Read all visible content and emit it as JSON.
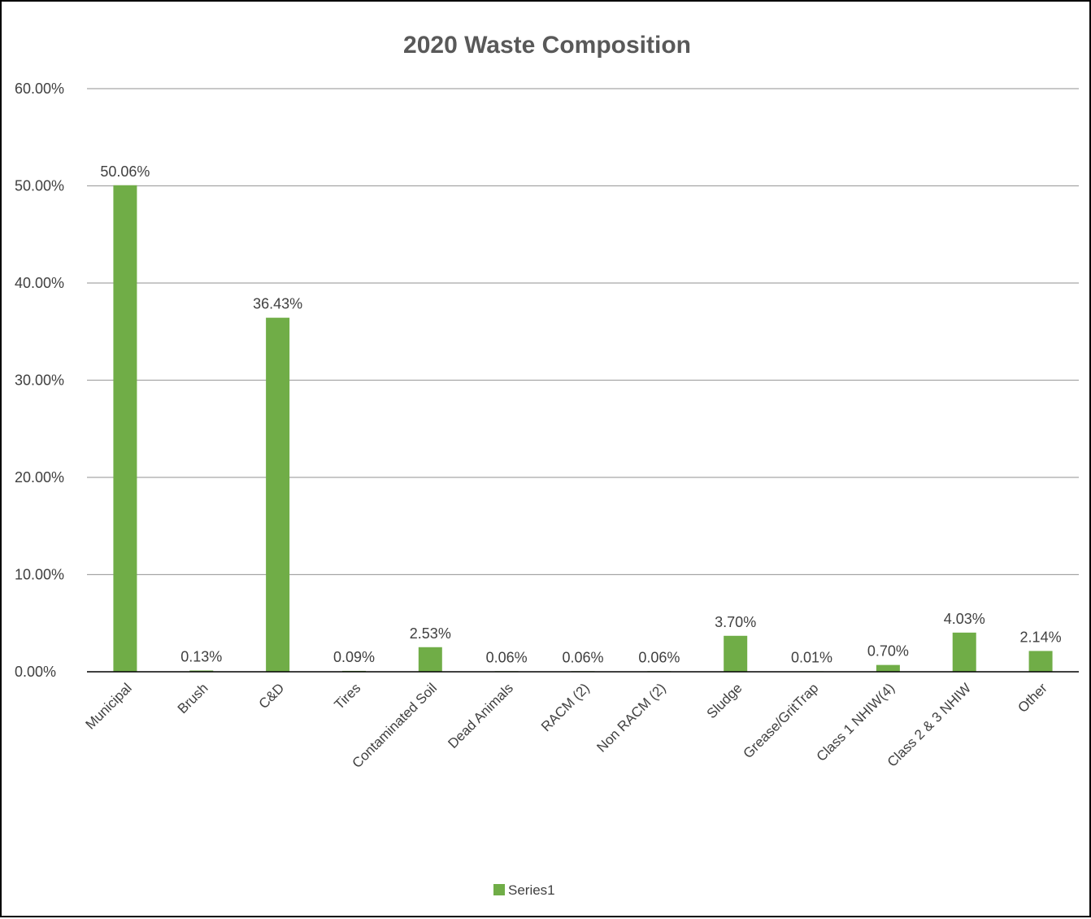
{
  "chart_data": {
    "type": "bar",
    "title": "2020 Waste Composition",
    "categories": [
      "Municipal",
      "Brush",
      "C&D",
      "Tires",
      "Contaminated Soil",
      "Dead Animals",
      "RACM (2)",
      "Non RACM (2)",
      "Sludge",
      "Grease/GritTrap",
      "Class 1 NHIW(4)",
      "Class 2 & 3 NHIW",
      "Other"
    ],
    "series": [
      {
        "name": "Series1",
        "color": "#70ad47",
        "values": [
          50.06,
          0.13,
          36.43,
          0.09,
          2.53,
          0.06,
          0.06,
          0.06,
          3.7,
          0.01,
          0.7,
          4.03,
          2.14
        ],
        "data_labels": [
          "50.06%",
          "0.13%",
          "36.43%",
          "0.09%",
          "2.53%",
          "0.06%",
          "0.06%",
          "0.06%",
          "3.70%",
          "0.01%",
          "0.70%",
          "4.03%",
          "2.14%"
        ]
      }
    ],
    "ylim": [
      0,
      60
    ],
    "yticks": [
      0,
      10,
      20,
      30,
      40,
      50,
      60
    ],
    "ytick_labels": [
      "0.00%",
      "10.00%",
      "20.00%",
      "30.00%",
      "40.00%",
      "50.00%",
      "60.00%"
    ],
    "xlabel": "",
    "ylabel": "",
    "grid": true,
    "legend": "bottom",
    "colors": {
      "bar": "#70ad47",
      "grid": "#a6a6a6",
      "axis": "#000000",
      "text": "#404040",
      "title": "#595959"
    }
  }
}
